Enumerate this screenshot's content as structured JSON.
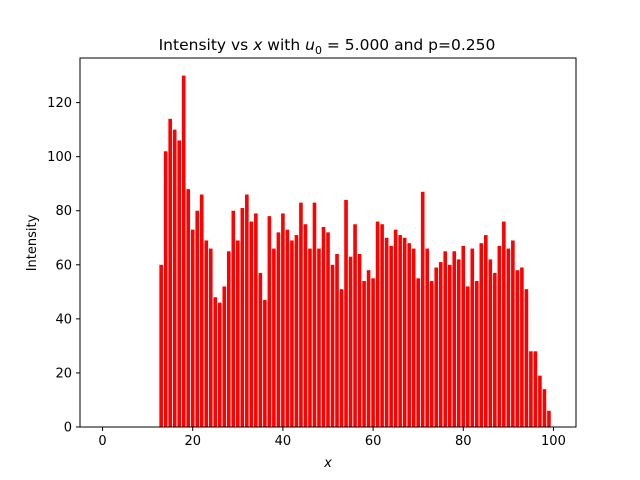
{
  "chart_data": {
    "type": "bar",
    "title": "Intensity vs x with u0 = 5.000 and p=0.250",
    "title_parts": {
      "prefix": "Intensity vs ",
      "xvar": "x",
      "mid": " with ",
      "uvar": "u",
      "usub": "0",
      "equals": " = 5.000 and p=0.250"
    },
    "xlabel": "x",
    "ylabel": "Intensity",
    "xlim": [
      -5,
      105
    ],
    "ylim": [
      0,
      136.5
    ],
    "xticks": [
      0,
      20,
      40,
      60,
      80,
      100
    ],
    "yticks": [
      0,
      20,
      40,
      60,
      80,
      100,
      120
    ],
    "bar_width": 0.8,
    "bar_color": "#ff0000",
    "grid": false,
    "x": [
      13,
      14,
      15,
      16,
      17,
      18,
      19,
      20,
      21,
      22,
      23,
      24,
      25,
      26,
      27,
      28,
      29,
      30,
      31,
      32,
      33,
      34,
      35,
      36,
      37,
      38,
      39,
      40,
      41,
      42,
      43,
      44,
      45,
      46,
      47,
      48,
      49,
      50,
      51,
      52,
      53,
      54,
      55,
      56,
      57,
      58,
      59,
      60,
      61,
      62,
      63,
      64,
      65,
      66,
      67,
      68,
      69,
      70,
      71,
      72,
      73,
      74,
      75,
      76,
      77,
      78,
      79,
      80,
      81,
      82,
      83,
      84,
      85,
      86,
      87,
      88,
      89,
      90,
      91,
      92,
      93,
      94,
      95,
      96,
      97,
      98,
      99,
      100
    ],
    "values": [
      60,
      102,
      114,
      110,
      106,
      130,
      88,
      73,
      80,
      86,
      69,
      66,
      48,
      46,
      52,
      65,
      80,
      69,
      81,
      86,
      76,
      79,
      57,
      47,
      78,
      66,
      72,
      79,
      73,
      69,
      71,
      83,
      75,
      66,
      83,
      66,
      74,
      72,
      60,
      64,
      51,
      84,
      63,
      75,
      64,
      54,
      58,
      55,
      76,
      75,
      70,
      67,
      73,
      71,
      70,
      68,
      66,
      55,
      87,
      66,
      54,
      59,
      61,
      65,
      60,
      65,
      62,
      67,
      52,
      66,
      54,
      68,
      71,
      62,
      57,
      67,
      76,
      66,
      69,
      58,
      59,
      51,
      28,
      28,
      19,
      14,
      6,
      0
    ]
  }
}
